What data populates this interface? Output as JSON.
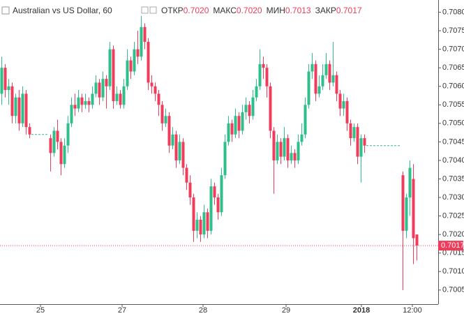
{
  "chart_data": {
    "type": "candlestick",
    "header": {
      "title": "Australian vs US Dollar, 60",
      "open_label": "ОТКР",
      "open": {
        "value": 0.702,
        "label": "0.7020"
      },
      "high_label": "МАКС",
      "high": {
        "value": 0.702,
        "label": "0.7020"
      },
      "low_label": "МИН",
      "low": 0.7013,
      "close_label": "ЗАКР",
      "close": 0.7017
    },
    "up_color": "#2fbf8a",
    "down_color": "#f03c5a",
    "x": [
      0,
      1,
      2,
      3,
      4,
      5,
      6,
      7,
      8,
      14,
      15,
      16,
      17,
      18,
      19,
      20,
      21,
      22,
      23,
      24,
      25,
      26,
      27,
      28,
      29,
      30,
      31,
      32,
      33,
      34,
      35,
      36,
      37,
      38,
      39,
      40,
      41,
      42,
      43,
      44,
      45,
      46,
      47,
      48,
      49,
      50,
      51,
      52,
      53,
      54,
      55,
      56,
      57,
      58,
      59,
      60,
      61,
      62,
      63,
      64,
      65,
      66,
      67,
      68,
      69,
      70,
      71,
      72,
      73,
      74,
      75,
      76,
      77,
      78,
      79,
      80,
      81,
      82,
      83,
      84,
      85,
      86,
      87,
      88,
      89,
      90,
      91,
      92,
      93,
      94,
      95,
      96,
      97,
      98,
      99,
      100,
      101,
      102,
      103,
      104,
      115,
      116,
      117,
      118,
      119
    ],
    "open": [
      0.7058,
      0.7065,
      0.7059,
      0.706,
      0.7052,
      0.7057,
      0.705,
      0.7058,
      0.7049,
      0.7046,
      0.7042,
      0.7048,
      0.7045,
      0.7039,
      0.7044,
      0.705,
      0.7055,
      0.7054,
      0.7057,
      0.7055,
      0.7056,
      0.7055,
      0.7058,
      0.7061,
      0.7057,
      0.7062,
      0.706,
      0.707,
      0.7056,
      0.7058,
      0.7055,
      0.706,
      0.7067,
      0.7064,
      0.707,
      0.7068,
      0.7076,
      0.7072,
      0.7061,
      0.706,
      0.7058,
      0.7055,
      0.705,
      0.7052,
      0.7044,
      0.7047,
      0.704,
      0.7045,
      0.7038,
      0.7034,
      0.703,
      0.7021,
      0.7024,
      0.702,
      0.7026,
      0.7021,
      0.7033,
      0.703,
      0.7026,
      0.7036,
      0.7045,
      0.705,
      0.7047,
      0.7052,
      0.7048,
      0.7053,
      0.7055,
      0.7052,
      0.7057,
      0.706,
      0.7066,
      0.7065,
      0.706,
      0.7048,
      0.704,
      0.7045,
      0.7041,
      0.7046,
      0.704,
      0.7042,
      0.704,
      0.7045,
      0.7047,
      0.7055,
      0.7064,
      0.7066,
      0.7058,
      0.706,
      0.7063,
      0.7066,
      0.7061,
      0.7063,
      0.7058,
      0.7054,
      0.7056,
      0.705,
      0.7046,
      0.7049,
      0.7041,
      0.7046,
      0.7036,
      0.7021,
      0.703,
      0.7035,
      0.702
    ],
    "high": [
      0.7068,
      0.7066,
      0.7062,
      0.7061,
      0.7058,
      0.7059,
      0.706,
      0.7059,
      0.705,
      0.7047,
      0.7049,
      0.7051,
      0.7046,
      0.7046,
      0.7052,
      0.7057,
      0.7058,
      0.7059,
      0.7058,
      0.7058,
      0.7057,
      0.706,
      0.7063,
      0.7062,
      0.7064,
      0.7063,
      0.7072,
      0.7071,
      0.706,
      0.7059,
      0.7062,
      0.707,
      0.7068,
      0.7072,
      0.7075,
      0.7079,
      0.7077,
      0.7073,
      0.7063,
      0.7061,
      0.7059,
      0.7056,
      0.7054,
      0.7053,
      0.7049,
      0.7048,
      0.7047,
      0.7046,
      0.7039,
      0.7036,
      0.7031,
      0.7026,
      0.7025,
      0.7028,
      0.7027,
      0.7035,
      0.7034,
      0.7031,
      0.7038,
      0.7047,
      0.7052,
      0.7051,
      0.7054,
      0.7053,
      0.7055,
      0.7057,
      0.7056,
      0.7059,
      0.7062,
      0.707,
      0.7068,
      0.7066,
      0.7061,
      0.7049,
      0.7047,
      0.7046,
      0.7049,
      0.7047,
      0.7044,
      0.7043,
      0.7047,
      0.705,
      0.7057,
      0.7066,
      0.7069,
      0.7067,
      0.7063,
      0.7066,
      0.7069,
      0.7067,
      0.7072,
      0.7064,
      0.7059,
      0.7058,
      0.7057,
      0.7051,
      0.705,
      0.705,
      0.7047,
      0.7047,
      0.7037,
      0.7031,
      0.704,
      0.7039,
      0.702
    ],
    "low": [
      0.7055,
      0.7057,
      0.7055,
      0.705,
      0.705,
      0.7048,
      0.7049,
      0.7047,
      0.7046,
      0.7037,
      0.7041,
      0.7043,
      0.7036,
      0.7038,
      0.7042,
      0.7049,
      0.7052,
      0.7053,
      0.7053,
      0.7054,
      0.7053,
      0.7054,
      0.7057,
      0.7055,
      0.7056,
      0.7054,
      0.7059,
      0.7054,
      0.7055,
      0.7054,
      0.7054,
      0.7059,
      0.7062,
      0.7063,
      0.7066,
      0.7067,
      0.707,
      0.7059,
      0.7058,
      0.7056,
      0.7052,
      0.7048,
      0.7049,
      0.7042,
      0.7043,
      0.7038,
      0.7039,
      0.7036,
      0.7032,
      0.7028,
      0.7018,
      0.7019,
      0.7018,
      0.7019,
      0.7019,
      0.702,
      0.7028,
      0.7024,
      0.7025,
      0.7035,
      0.7044,
      0.7045,
      0.7046,
      0.7046,
      0.7047,
      0.7051,
      0.705,
      0.7051,
      0.7056,
      0.7059,
      0.7062,
      0.7057,
      0.7046,
      0.7031,
      0.7039,
      0.7039,
      0.704,
      0.7038,
      0.7039,
      0.7038,
      0.7039,
      0.7044,
      0.7046,
      0.7054,
      0.7062,
      0.7056,
      0.7057,
      0.7059,
      0.7062,
      0.7059,
      0.706,
      0.7056,
      0.7052,
      0.7052,
      0.7048,
      0.7044,
      0.7045,
      0.7039,
      0.7034,
      0.7042,
      0.7005,
      0.7019,
      0.7025,
      0.7012,
      0.7013
    ],
    "close": [
      0.7065,
      0.7059,
      0.706,
      0.7052,
      0.7057,
      0.705,
      0.7058,
      0.7049,
      0.7047,
      0.7042,
      0.7048,
      0.7045,
      0.7039,
      0.7044,
      0.705,
      0.7055,
      0.7054,
      0.7057,
      0.7055,
      0.7056,
      0.7055,
      0.7058,
      0.7061,
      0.7057,
      0.7062,
      0.706,
      0.707,
      0.7056,
      0.7058,
      0.7055,
      0.706,
      0.7067,
      0.7064,
      0.707,
      0.7068,
      0.7076,
      0.7072,
      0.7061,
      0.706,
      0.7058,
      0.7055,
      0.705,
      0.7052,
      0.7044,
      0.7047,
      0.704,
      0.7045,
      0.7038,
      0.7034,
      0.703,
      0.7021,
      0.7024,
      0.702,
      0.7026,
      0.7021,
      0.7033,
      0.703,
      0.7026,
      0.7036,
      0.7045,
      0.705,
      0.7047,
      0.7052,
      0.7048,
      0.7053,
      0.7055,
      0.7052,
      0.7057,
      0.706,
      0.7066,
      0.7065,
      0.706,
      0.7048,
      0.704,
      0.7045,
      0.7041,
      0.7046,
      0.704,
      0.7042,
      0.704,
      0.7045,
      0.7047,
      0.7055,
      0.7064,
      0.7066,
      0.7058,
      0.706,
      0.7063,
      0.7066,
      0.7061,
      0.7063,
      0.7058,
      0.7054,
      0.7056,
      0.705,
      0.7046,
      0.7049,
      0.7041,
      0.7046,
      0.7044,
      0.7021,
      0.703,
      0.7038,
      0.7019,
      0.7017
    ],
    "gaps": [
      {
        "x": [
          9,
          13
        ],
        "value": 0.7047
      },
      {
        "x": [
          105,
          114
        ],
        "value": 0.7044
      }
    ],
    "xlim": [
      0,
      126
    ],
    "xticks": [
      {
        "value": 11.6,
        "label": "25"
      },
      {
        "value": 35,
        "label": "27"
      },
      {
        "value": 58.2,
        "label": "28"
      },
      {
        "value": 82,
        "label": "29"
      },
      {
        "value": 103.6,
        "label": "2018",
        "bold": true
      },
      {
        "value": 118.2,
        "label": "12:00"
      }
    ],
    "ylim": [
      0.70012,
      0.70833
    ],
    "yticks": [
      0.7005,
      {
        "value": 0.701,
        "label": "0.7010"
      },
      0.7015,
      {
        "value": 0.702,
        "label": "0.7020"
      },
      0.7025,
      {
        "value": 0.703,
        "label": "0.7030"
      },
      0.7035,
      {
        "value": 0.704,
        "label": "0.7040"
      },
      0.7045,
      {
        "value": 0.705,
        "label": "0.7050"
      },
      0.7055,
      {
        "value": 0.706,
        "label": "0.7060"
      },
      0.7065,
      {
        "value": 0.707,
        "label": "0.7070"
      },
      0.7075,
      {
        "value": 0.708,
        "label": "0.7080"
      }
    ]
  }
}
